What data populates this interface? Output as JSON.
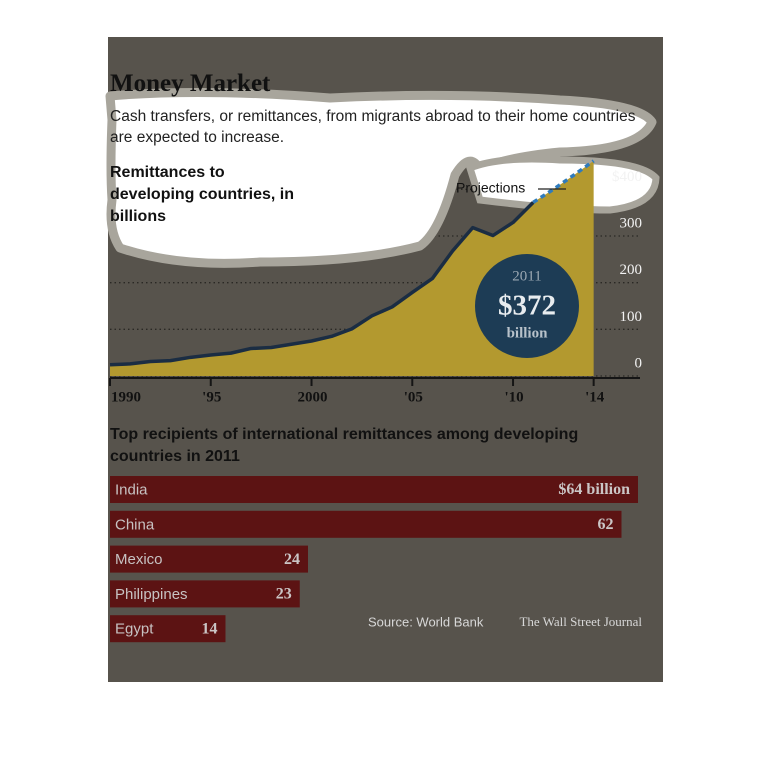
{
  "title": "Money Market",
  "subtitle": "Cash transfers, or remittances, from migrants abroad to their home countries are expected to increase.",
  "source": "Source: World Bank",
  "credit": "The Wall Street Journal",
  "chart_data": [
    {
      "type": "area",
      "y_label": "Remittances to developing countries, in billions",
      "x": [
        1990,
        1991,
        1992,
        1993,
        1994,
        1995,
        1996,
        1997,
        1998,
        1999,
        2000,
        2001,
        2002,
        2003,
        2004,
        2005,
        2006,
        2007,
        2008,
        2009,
        2010,
        2011,
        2012,
        2013,
        2014
      ],
      "series": [
        {
          "name": "Remittances",
          "color": "#1b2d43",
          "values": [
            24,
            26,
            31,
            33,
            40,
            45,
            49,
            59,
            61,
            68,
            75,
            85,
            101,
            129,
            148,
            179,
            209,
            268,
            318,
            301,
            329,
            372,
            null,
            null,
            null
          ]
        },
        {
          "name": "Projections",
          "color": "#2f7bbd",
          "values": [
            null,
            null,
            null,
            null,
            null,
            null,
            null,
            null,
            null,
            null,
            null,
            null,
            null,
            null,
            null,
            null,
            null,
            null,
            null,
            null,
            null,
            372,
            400,
            430,
            461
          ]
        }
      ],
      "area_color": "#b3992f",
      "xlim": [
        1990,
        2016.3
      ],
      "xticks": [
        1990,
        {
          "value": 1995,
          "label": "'95"
        },
        2000,
        {
          "value": 2005,
          "label": "'05"
        },
        {
          "value": 2010,
          "label": "'10"
        },
        {
          "value": 2014,
          "label": "'14"
        }
      ],
      "ylim": [
        0,
        450
      ],
      "yticks": [
        0,
        100,
        200,
        300,
        {
          "value": 400,
          "label": "$400"
        }
      ],
      "grid": true,
      "callout": {
        "year": "2011",
        "value": "$372",
        "unit": "billion"
      }
    },
    {
      "type": "hbar",
      "title": "Top recipients of international remittances among developing countries in 2011",
      "categories": [
        "India",
        "China",
        "Mexico",
        "Philippines",
        "Egypt"
      ],
      "values": [
        64,
        62,
        24,
        23,
        14
      ],
      "value_labels": [
        "$64 billion",
        "62",
        "24",
        "23",
        "14"
      ],
      "color": "#5c1313"
    }
  ]
}
